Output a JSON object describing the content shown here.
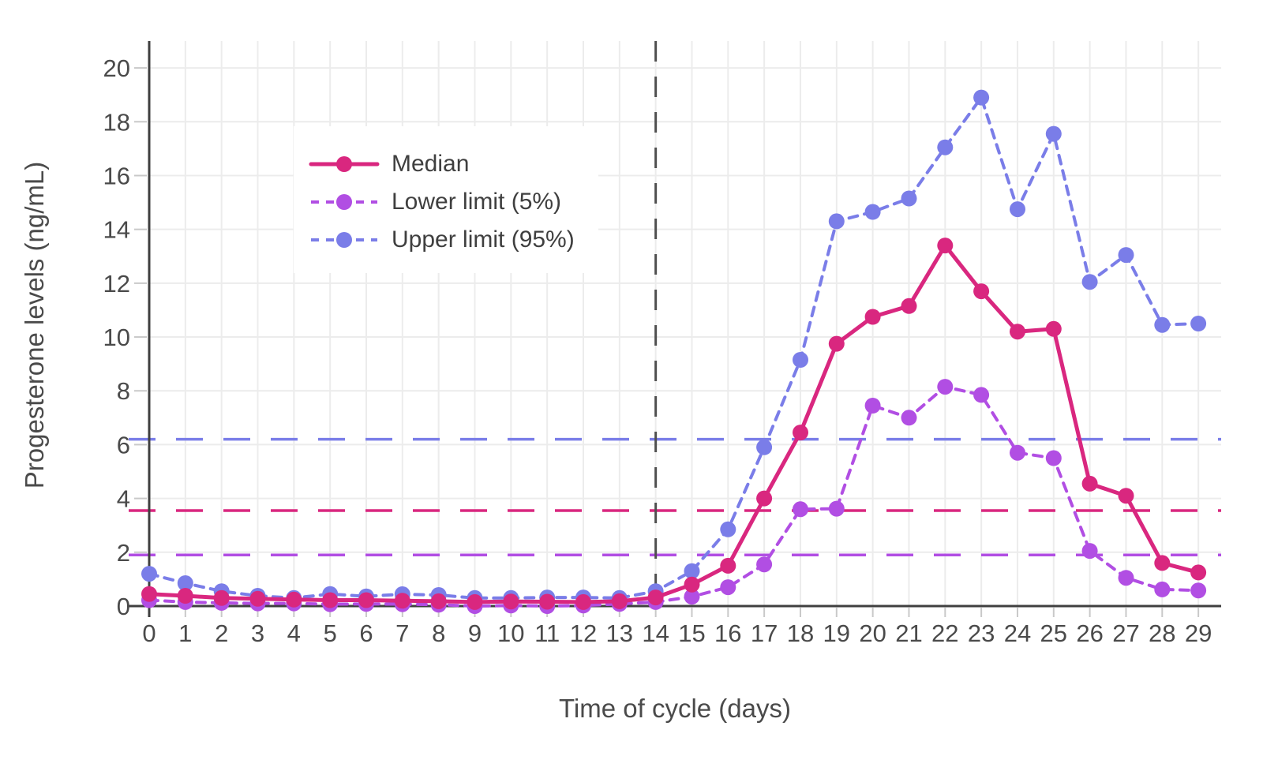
{
  "style": {
    "background": "#FFFFFF",
    "grid_color": "#ECECEC",
    "axis_color": "#3F3F3F",
    "tick_color": "#C9C9C9",
    "text_color": "#4A4A4A",
    "legend_text_color": "#3F3F3F"
  },
  "chart_data": {
    "type": "line",
    "title": "",
    "xlabel": "Time of cycle (days)",
    "ylabel": "Progesterone levels (ng/mL)",
    "x": [
      0,
      1,
      2,
      3,
      4,
      5,
      6,
      7,
      8,
      9,
      10,
      11,
      12,
      13,
      14,
      15,
      16,
      17,
      18,
      19,
      20,
      21,
      22,
      23,
      24,
      25,
      26,
      27,
      28,
      29
    ],
    "y_ticks": [
      0,
      2,
      4,
      6,
      8,
      10,
      12,
      14,
      16,
      18,
      20
    ],
    "xlim": [
      0,
      29.63
    ],
    "ylim": [
      0,
      21
    ],
    "grid": true,
    "legend_position": "inside-top-left",
    "series": [
      {
        "name": "Median",
        "color": "#D9277F",
        "line_style": "solid",
        "marker": "circle",
        "values": [
          0.45,
          0.38,
          0.3,
          0.27,
          0.24,
          0.22,
          0.22,
          0.2,
          0.18,
          0.15,
          0.17,
          0.16,
          0.15,
          0.18,
          0.32,
          0.8,
          1.5,
          4.0,
          6.45,
          9.75,
          10.75,
          11.15,
          13.4,
          11.7,
          10.2,
          10.3,
          4.55,
          4.1,
          1.6,
          1.25
        ]
      },
      {
        "name": "Lower limit (5%)",
        "color": "#B14EE3",
        "line_style": "dashed",
        "marker": "circle",
        "values": [
          0.22,
          0.15,
          0.12,
          0.1,
          0.1,
          0.07,
          0.08,
          0.07,
          0.05,
          0.0,
          0.02,
          0.0,
          0.02,
          0.08,
          0.15,
          0.35,
          0.7,
          1.55,
          3.6,
          3.62,
          7.45,
          7.0,
          8.15,
          7.85,
          5.7,
          5.5,
          2.05,
          1.05,
          0.62,
          0.58
        ]
      },
      {
        "name": "Upper limit (95%)",
        "color": "#7A7DE8",
        "line_style": "dashed",
        "marker": "circle",
        "values": [
          1.2,
          0.85,
          0.55,
          0.38,
          0.3,
          0.45,
          0.36,
          0.44,
          0.41,
          0.3,
          0.3,
          0.32,
          0.32,
          0.3,
          0.55,
          1.3,
          2.85,
          5.9,
          9.15,
          14.3,
          14.65,
          15.15,
          17.05,
          18.9,
          14.75,
          17.55,
          12.05,
          13.05,
          10.45,
          10.5
        ]
      }
    ],
    "reference_lines": {
      "vertical": [
        {
          "x": 14,
          "color": "#4F4F4F",
          "style": "dashed"
        }
      ],
      "horizontal": [
        {
          "y": 6.2,
          "color": "#7A7DE8",
          "style": "dashed"
        },
        {
          "y": 3.55,
          "color": "#D9277F",
          "style": "dashed"
        },
        {
          "y": 1.9,
          "color": "#B14EE3",
          "style": "dashed"
        }
      ]
    }
  }
}
